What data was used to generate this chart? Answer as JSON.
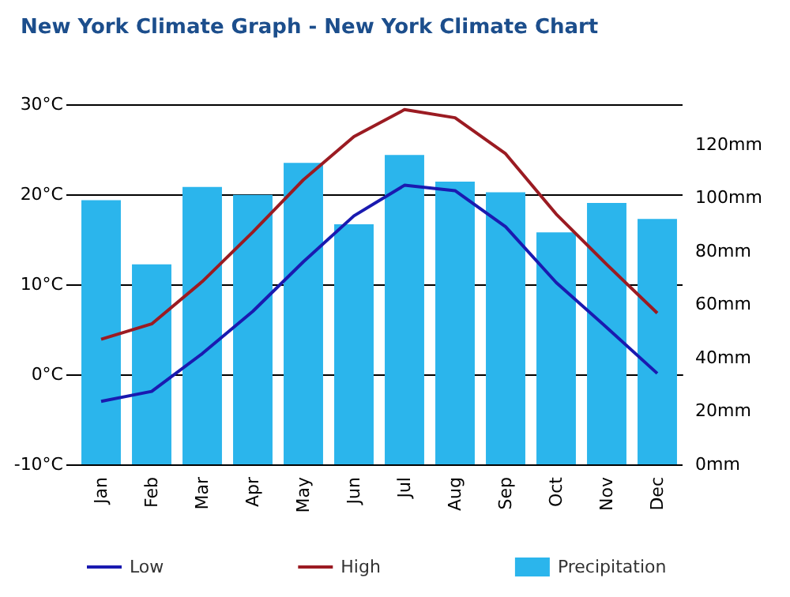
{
  "chart_data": {
    "type": "bar",
    "title": "New York Climate Graph - New York Climate Chart",
    "categories": [
      "Jan",
      "Feb",
      "Mar",
      "Apr",
      "May",
      "Jun",
      "Jul",
      "Aug",
      "Sep",
      "Oct",
      "Nov",
      "Dec"
    ],
    "series": [
      {
        "name": "Low",
        "type": "line",
        "color": "#1a1ab0",
        "values": [
          -3.0,
          -1.9,
          2.3,
          7.0,
          12.5,
          17.6,
          21.0,
          20.4,
          16.4,
          10.2,
          5.2,
          0.1
        ]
      },
      {
        "name": "High",
        "type": "line",
        "color": "#9b1b22",
        "values": [
          3.9,
          5.6,
          10.3,
          15.8,
          21.6,
          26.4,
          29.4,
          28.5,
          24.5,
          17.8,
          12.2,
          6.8
        ]
      },
      {
        "name": "Precipitation",
        "axis": "y2",
        "color": "#2bb5ec",
        "values": [
          99,
          75,
          104,
          101,
          113,
          90,
          116,
          106,
          102,
          87,
          98,
          92
        ]
      }
    ],
    "ylim": [
      -10,
      30
    ],
    "yticks": [
      {
        "value": -10,
        "label": "-10°C"
      },
      {
        "value": 0,
        "label": "0°C"
      },
      {
        "value": 10,
        "label": "10°C"
      },
      {
        "value": 20,
        "label": "20°C"
      },
      {
        "value": 30,
        "label": "30°C"
      }
    ],
    "y2lim": [
      0,
      135
    ],
    "y2ticks": [
      {
        "value": 0,
        "label": "0mm"
      },
      {
        "value": 20,
        "label": "20mm"
      },
      {
        "value": 40,
        "label": "40mm"
      },
      {
        "value": 60,
        "label": "60mm"
      },
      {
        "value": 80,
        "label": "80mm"
      },
      {
        "value": 100,
        "label": "100mm"
      },
      {
        "value": 120,
        "label": "120mm"
      }
    ],
    "grid": "y",
    "legend": "bottom",
    "marker": "none",
    "line_style": "solid"
  }
}
